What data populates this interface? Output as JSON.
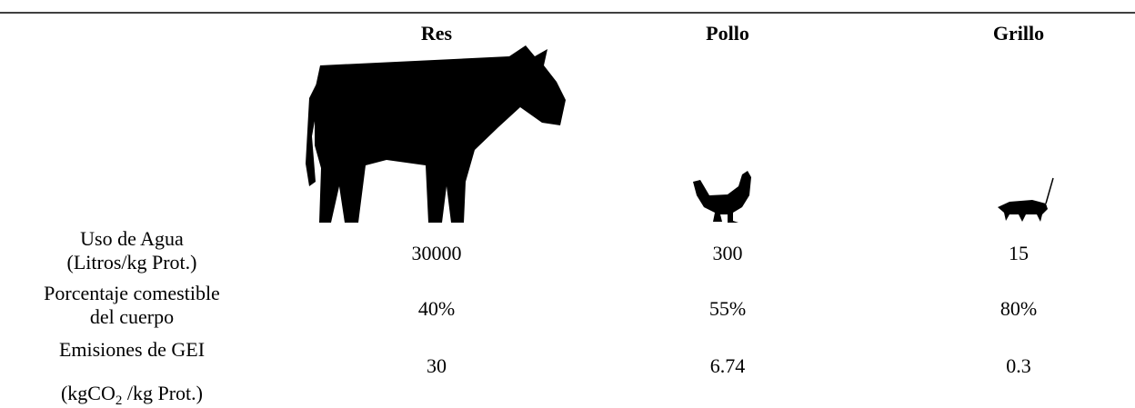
{
  "table": {
    "columns": [
      "Res",
      "Pollo",
      "Grillo"
    ],
    "rows": [
      {
        "label": [
          "Uso de Agua",
          "(Litros/kg Prot.)"
        ],
        "values": [
          "30000",
          "300",
          "15"
        ]
      },
      {
        "label": [
          "Porcentaje comestible",
          "del cuerpo"
        ],
        "values": [
          "40%",
          "55%",
          "80%"
        ]
      },
      {
        "label": [
          "Emisiones de GEI",
          [
            "(kgCO",
            "2",
            " /kg Prot.)"
          ]
        ],
        "values": [
          "30",
          "6.74",
          "0.3"
        ]
      }
    ]
  }
}
